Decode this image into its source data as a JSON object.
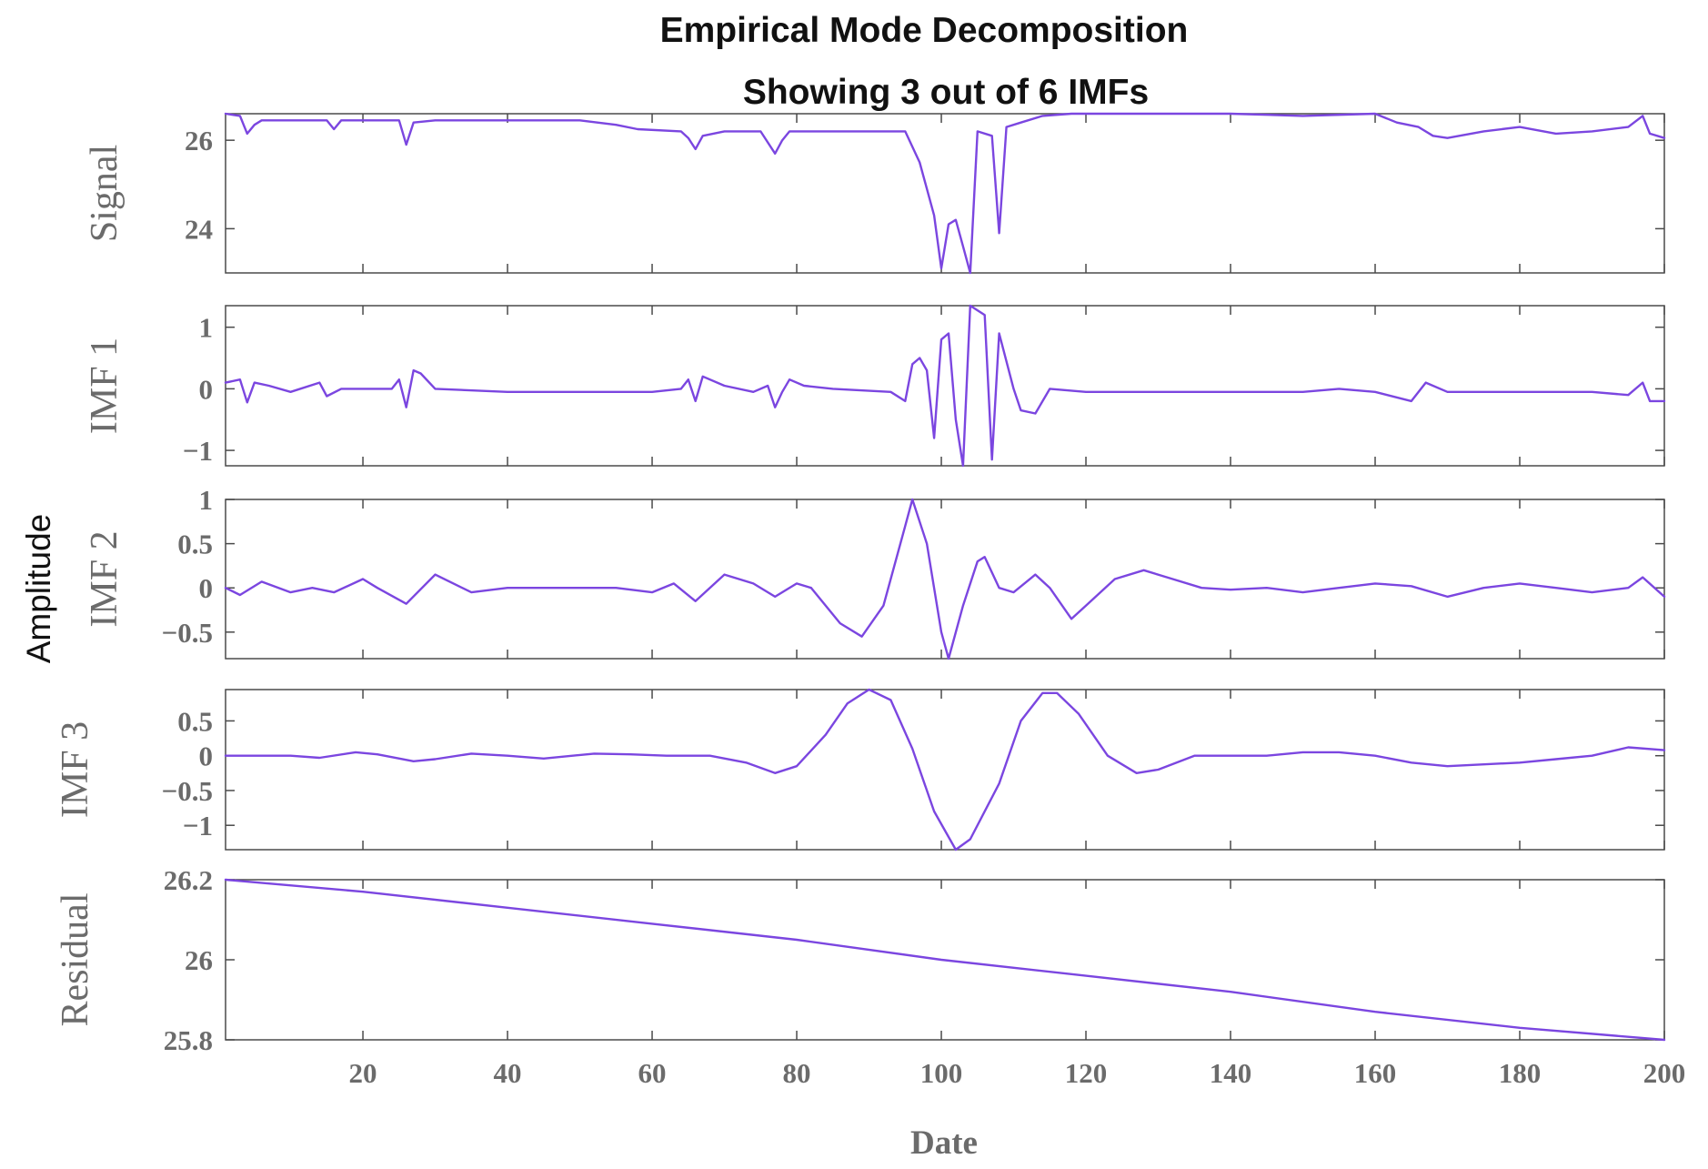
{
  "chart_data": {
    "type": "line",
    "title": "Empirical Mode Decomposition",
    "subtitle": "Showing 3 out of 6 IMFs",
    "ylabel": "Amplitude",
    "xlabel": "Date",
    "xlim": [
      1,
      200
    ],
    "xticks": [
      20,
      40,
      60,
      80,
      100,
      120,
      140,
      160,
      180,
      200
    ],
    "xticklabels": [
      "20",
      "40",
      "60",
      "80",
      "100",
      "120",
      "140",
      "160",
      "180",
      "200"
    ],
    "line_color": "#7b46e0",
    "panels": [
      {
        "label": "Signal",
        "ylim": [
          23,
          26.6
        ],
        "yticks": [
          24,
          26
        ],
        "yticklabels": [
          "24",
          "26"
        ],
        "points": [
          [
            1,
            26.6
          ],
          [
            3,
            26.55
          ],
          [
            4,
            26.15
          ],
          [
            5,
            26.35
          ],
          [
            6,
            26.45
          ],
          [
            15,
            26.45
          ],
          [
            16,
            26.25
          ],
          [
            17,
            26.45
          ],
          [
            25,
            26.45
          ],
          [
            26,
            25.9
          ],
          [
            27,
            26.4
          ],
          [
            30,
            26.45
          ],
          [
            50,
            26.45
          ],
          [
            55,
            26.35
          ],
          [
            58,
            26.25
          ],
          [
            64,
            26.2
          ],
          [
            65,
            26.05
          ],
          [
            66,
            25.8
          ],
          [
            67,
            26.1
          ],
          [
            70,
            26.2
          ],
          [
            75,
            26.2
          ],
          [
            77,
            25.7
          ],
          [
            78,
            26.0
          ],
          [
            79,
            26.2
          ],
          [
            95,
            26.2
          ],
          [
            97,
            25.5
          ],
          [
            99,
            24.3
          ],
          [
            100,
            23.1
          ],
          [
            101,
            24.1
          ],
          [
            102,
            24.2
          ],
          [
            103,
            23.6
          ],
          [
            104,
            23.0
          ],
          [
            105,
            26.2
          ],
          [
            107,
            26.1
          ],
          [
            108,
            23.9
          ],
          [
            109,
            26.3
          ],
          [
            111,
            26.4
          ],
          [
            114,
            26.55
          ],
          [
            118,
            26.6
          ],
          [
            140,
            26.6
          ],
          [
            150,
            26.55
          ],
          [
            160,
            26.6
          ],
          [
            163,
            26.4
          ],
          [
            166,
            26.3
          ],
          [
            168,
            26.1
          ],
          [
            170,
            26.05
          ],
          [
            175,
            26.2
          ],
          [
            180,
            26.3
          ],
          [
            185,
            26.15
          ],
          [
            190,
            26.2
          ],
          [
            195,
            26.3
          ],
          [
            197,
            26.55
          ],
          [
            198,
            26.15
          ],
          [
            200,
            26.05
          ]
        ]
      },
      {
        "label": "IMF 1",
        "ylim": [
          -1.25,
          1.35
        ],
        "yticks": [
          -1,
          0,
          1
        ],
        "yticklabels": [
          "−1",
          "0",
          "1"
        ],
        "points": [
          [
            1,
            0.1
          ],
          [
            3,
            0.15
          ],
          [
            4,
            -0.22
          ],
          [
            5,
            0.1
          ],
          [
            7,
            0.05
          ],
          [
            10,
            -0.05
          ],
          [
            14,
            0.1
          ],
          [
            15,
            -0.12
          ],
          [
            17,
            0.0
          ],
          [
            24,
            0.0
          ],
          [
            25,
            0.15
          ],
          [
            26,
            -0.3
          ],
          [
            27,
            0.3
          ],
          [
            28,
            0.25
          ],
          [
            30,
            0.0
          ],
          [
            40,
            -0.05
          ],
          [
            60,
            -0.05
          ],
          [
            64,
            0.0
          ],
          [
            65,
            0.15
          ],
          [
            66,
            -0.2
          ],
          [
            67,
            0.2
          ],
          [
            70,
            0.05
          ],
          [
            74,
            -0.05
          ],
          [
            76,
            0.05
          ],
          [
            77,
            -0.3
          ],
          [
            78,
            -0.05
          ],
          [
            79,
            0.15
          ],
          [
            81,
            0.05
          ],
          [
            85,
            0.0
          ],
          [
            93,
            -0.05
          ],
          [
            95,
            -0.2
          ],
          [
            96,
            0.4
          ],
          [
            97,
            0.5
          ],
          [
            98,
            0.3
          ],
          [
            99,
            -0.8
          ],
          [
            100,
            0.8
          ],
          [
            101,
            0.9
          ],
          [
            102,
            -0.5
          ],
          [
            103,
            -1.25
          ],
          [
            104,
            1.35
          ],
          [
            106,
            1.2
          ],
          [
            107,
            -1.15
          ],
          [
            108,
            0.9
          ],
          [
            110,
            0.0
          ],
          [
            111,
            -0.35
          ],
          [
            113,
            -0.4
          ],
          [
            115,
            0.0
          ],
          [
            120,
            -0.05
          ],
          [
            140,
            -0.05
          ],
          [
            150,
            -0.05
          ],
          [
            155,
            0.0
          ],
          [
            160,
            -0.05
          ],
          [
            165,
            -0.2
          ],
          [
            167,
            0.1
          ],
          [
            170,
            -0.05
          ],
          [
            190,
            -0.05
          ],
          [
            195,
            -0.1
          ],
          [
            197,
            0.1
          ],
          [
            198,
            -0.2
          ],
          [
            200,
            -0.2
          ]
        ]
      },
      {
        "label": "IMF 2",
        "ylim": [
          -0.8,
          1.0
        ],
        "yticks": [
          -0.5,
          0,
          0.5,
          1
        ],
        "yticklabels": [
          "−0.5",
          "0",
          "0.5",
          "1"
        ],
        "points": [
          [
            1,
            0.0
          ],
          [
            3,
            -0.08
          ],
          [
            6,
            0.07
          ],
          [
            10,
            -0.05
          ],
          [
            13,
            0.0
          ],
          [
            16,
            -0.05
          ],
          [
            20,
            0.1
          ],
          [
            22,
            0.0
          ],
          [
            26,
            -0.18
          ],
          [
            30,
            0.15
          ],
          [
            35,
            -0.05
          ],
          [
            40,
            0.0
          ],
          [
            55,
            0.0
          ],
          [
            60,
            -0.05
          ],
          [
            63,
            0.05
          ],
          [
            66,
            -0.15
          ],
          [
            70,
            0.15
          ],
          [
            74,
            0.05
          ],
          [
            77,
            -0.1
          ],
          [
            80,
            0.05
          ],
          [
            82,
            0.0
          ],
          [
            86,
            -0.4
          ],
          [
            89,
            -0.55
          ],
          [
            92,
            -0.2
          ],
          [
            95,
            0.7
          ],
          [
            96,
            1.0
          ],
          [
            98,
            0.5
          ],
          [
            100,
            -0.5
          ],
          [
            101,
            -0.8
          ],
          [
            103,
            -0.2
          ],
          [
            105,
            0.3
          ],
          [
            106,
            0.35
          ],
          [
            108,
            0.0
          ],
          [
            110,
            -0.05
          ],
          [
            113,
            0.15
          ],
          [
            115,
            0.0
          ],
          [
            118,
            -0.35
          ],
          [
            120,
            -0.2
          ],
          [
            124,
            0.1
          ],
          [
            128,
            0.2
          ],
          [
            132,
            0.1
          ],
          [
            136,
            0.0
          ],
          [
            140,
            -0.02
          ],
          [
            145,
            0.0
          ],
          [
            150,
            -0.05
          ],
          [
            155,
            0.0
          ],
          [
            160,
            0.05
          ],
          [
            165,
            0.02
          ],
          [
            170,
            -0.1
          ],
          [
            175,
            0.0
          ],
          [
            180,
            0.05
          ],
          [
            185,
            0.0
          ],
          [
            190,
            -0.05
          ],
          [
            195,
            0.0
          ],
          [
            197,
            0.12
          ],
          [
            200,
            -0.1
          ]
        ]
      },
      {
        "label": "IMF 3",
        "ylim": [
          -1.35,
          0.95
        ],
        "yticks": [
          -1,
          -0.5,
          0,
          0.5
        ],
        "yticklabels": [
          "−1",
          "−0.5",
          "0",
          "0.5"
        ],
        "points": [
          [
            1,
            0.0
          ],
          [
            10,
            0.0
          ],
          [
            14,
            -0.03
          ],
          [
            19,
            0.05
          ],
          [
            22,
            0.02
          ],
          [
            27,
            -0.08
          ],
          [
            30,
            -0.05
          ],
          [
            35,
            0.03
          ],
          [
            40,
            0.0
          ],
          [
            45,
            -0.04
          ],
          [
            52,
            0.03
          ],
          [
            57,
            0.02
          ],
          [
            62,
            0.0
          ],
          [
            68,
            0.0
          ],
          [
            73,
            -0.1
          ],
          [
            77,
            -0.25
          ],
          [
            80,
            -0.15
          ],
          [
            84,
            0.3
          ],
          [
            87,
            0.75
          ],
          [
            90,
            0.95
          ],
          [
            93,
            0.8
          ],
          [
            96,
            0.1
          ],
          [
            99,
            -0.8
          ],
          [
            102,
            -1.35
          ],
          [
            104,
            -1.2
          ],
          [
            108,
            -0.4
          ],
          [
            111,
            0.5
          ],
          [
            114,
            0.9
          ],
          [
            116,
            0.9
          ],
          [
            119,
            0.6
          ],
          [
            123,
            0.0
          ],
          [
            127,
            -0.25
          ],
          [
            130,
            -0.2
          ],
          [
            135,
            0.0
          ],
          [
            145,
            0.0
          ],
          [
            150,
            0.05
          ],
          [
            155,
            0.05
          ],
          [
            160,
            0.0
          ],
          [
            165,
            -0.1
          ],
          [
            170,
            -0.15
          ],
          [
            180,
            -0.1
          ],
          [
            185,
            -0.05
          ],
          [
            190,
            0.0
          ],
          [
            195,
            0.12
          ],
          [
            200,
            0.08
          ]
        ]
      },
      {
        "label": "Residual",
        "ylim": [
          25.8,
          26.2
        ],
        "yticks": [
          25.8,
          26,
          26.2
        ],
        "yticklabels": [
          "25.8",
          "26",
          "26.2"
        ],
        "points": [
          [
            1,
            26.2
          ],
          [
            20,
            26.17
          ],
          [
            40,
            26.13
          ],
          [
            60,
            26.09
          ],
          [
            80,
            26.05
          ],
          [
            100,
            26.0
          ],
          [
            120,
            25.96
          ],
          [
            140,
            25.92
          ],
          [
            160,
            25.87
          ],
          [
            180,
            25.83
          ],
          [
            200,
            25.8
          ]
        ]
      }
    ]
  }
}
